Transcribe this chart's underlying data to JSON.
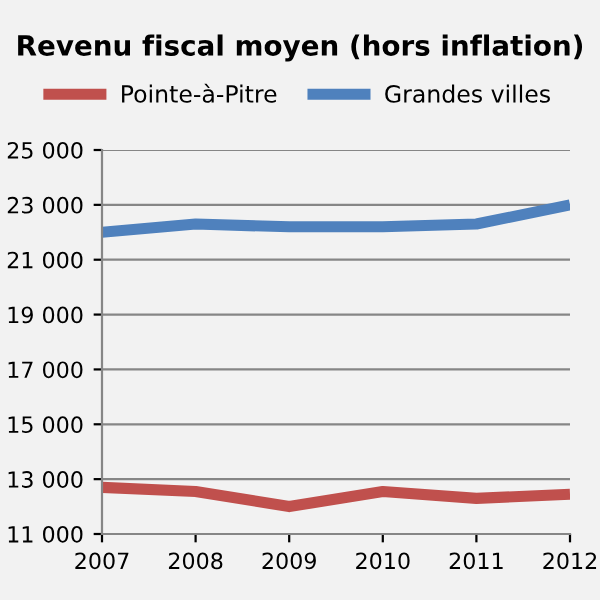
{
  "chart_data": {
    "type": "line",
    "title": "Revenu fiscal moyen (hors inflation)",
    "categories": [
      "2007",
      "2008",
      "2009",
      "2010",
      "2011",
      "2012"
    ],
    "series": [
      {
        "name": "Pointe-à-Pitre",
        "color": "#c0504d",
        "values": [
          12700,
          12550,
          12000,
          12550,
          12300,
          12450
        ]
      },
      {
        "name": "Grandes villes",
        "color": "#4f81bd",
        "values": [
          22000,
          22300,
          22200,
          22200,
          22300,
          23000
        ]
      }
    ],
    "ylim": [
      11000,
      25000
    ],
    "yticks": [
      {
        "value": 11000,
        "label": "11 000"
      },
      {
        "value": 13000,
        "label": "13 000"
      },
      {
        "value": 15000,
        "label": "15 000"
      },
      {
        "value": 17000,
        "label": "17 000"
      },
      {
        "value": 19000,
        "label": "19 000"
      },
      {
        "value": 21000,
        "label": "21 000"
      },
      {
        "value": 23000,
        "label": "23 000"
      },
      {
        "value": 25000,
        "label": "25 000"
      }
    ],
    "grid": "y",
    "legend": "top",
    "marker": "none",
    "line_style": "solid"
  }
}
